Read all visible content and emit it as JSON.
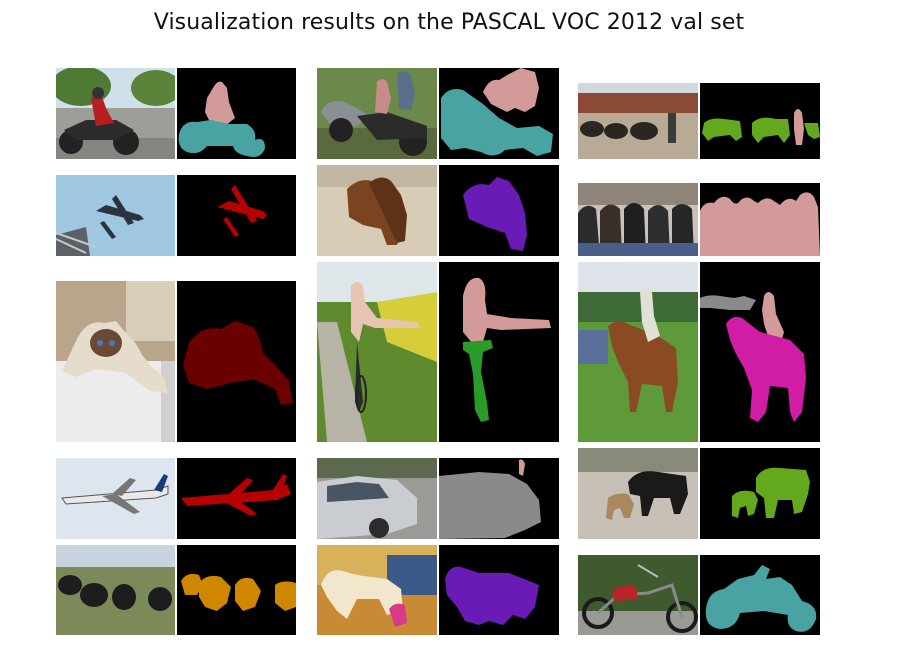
{
  "page": {
    "title": "Visualization results on the PASCAL VOC 2012 val set"
  },
  "colors": {
    "person": "#d39a9a",
    "motorbike": "#4aa3a3",
    "aeroplane": "#b70000",
    "dog": "#6a1ab5",
    "cat": "#6b0000",
    "bicycle": "#2a9a2a",
    "horse": "#d11ca6",
    "cow": "#64a81e",
    "sheep": "#d08700",
    "car": "#8a8a8a"
  },
  "grid": {
    "columns": [
      {
        "items": [
          {
            "photo_icon": "motorbike-rider-photo",
            "mask_icon": "motorbike-rider-mask"
          },
          {
            "photo_icon": "aeroplane-photo",
            "mask_icon": "aeroplane-mask"
          },
          {
            "photo_icon": "cat-photo",
            "mask_icon": "cat-mask"
          },
          {
            "photo_icon": "airliner-photo",
            "mask_icon": "airliner-mask"
          },
          {
            "photo_icon": "sheep-photo",
            "mask_icon": "sheep-mask"
          }
        ]
      },
      {
        "items": [
          {
            "photo_icon": "trike-family-photo",
            "mask_icon": "trike-family-mask"
          },
          {
            "photo_icon": "dogs-on-bed-photo",
            "mask_icon": "dogs-on-bed-mask"
          },
          {
            "photo_icon": "cyclist-photo",
            "mask_icon": "cyclist-mask"
          },
          {
            "photo_icon": "car-photo",
            "mask_icon": "car-mask"
          },
          {
            "photo_icon": "puppy-photo",
            "mask_icon": "puppy-mask"
          }
        ]
      },
      {
        "items": [
          {
            "photo_icon": "cattle-herd-photo",
            "mask_icon": "cattle-herd-mask"
          },
          {
            "photo_icon": "group-people-photo",
            "mask_icon": "group-people-mask"
          },
          {
            "photo_icon": "horse-rider-photo",
            "mask_icon": "horse-rider-mask"
          },
          {
            "photo_icon": "cow-calf-photo",
            "mask_icon": "cow-calf-mask"
          },
          {
            "photo_icon": "chopper-photo",
            "mask_icon": "chopper-mask"
          }
        ]
      }
    ]
  }
}
